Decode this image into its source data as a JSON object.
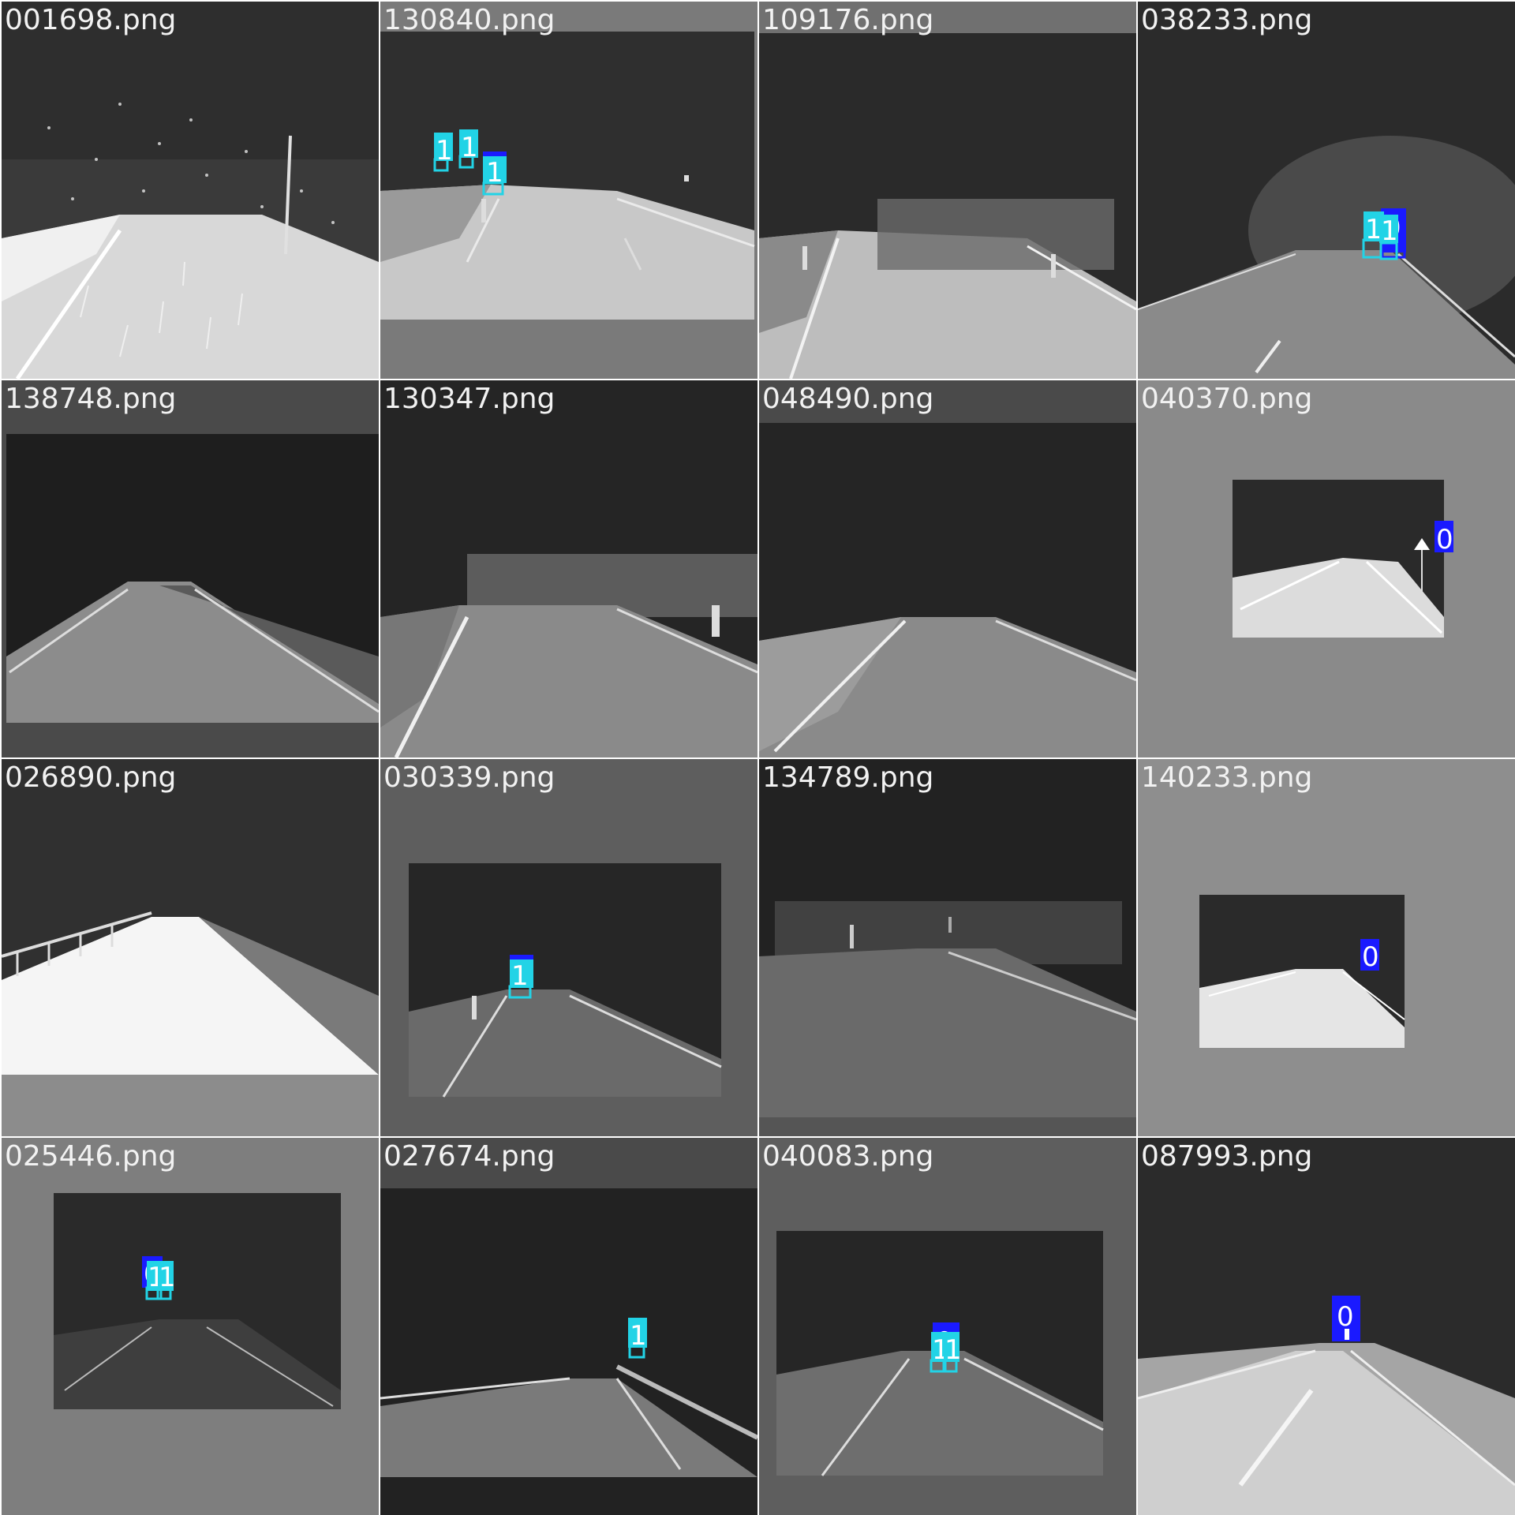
{
  "tiles": [
    {
      "filename": "001698.png",
      "detections": []
    },
    {
      "filename": "130840.png",
      "detections": [
        {
          "label": "1"
        },
        {
          "label": "1"
        },
        {
          "label": "1"
        }
      ]
    },
    {
      "filename": "109176.png",
      "detections": []
    },
    {
      "filename": "038233.png",
      "detections": [
        {
          "label": "0"
        },
        {
          "label": "1"
        },
        {
          "label": "1"
        }
      ]
    },
    {
      "filename": "138748.png",
      "detections": []
    },
    {
      "filename": "130347.png",
      "detections": []
    },
    {
      "filename": "048490.png",
      "detections": []
    },
    {
      "filename": "040370.png",
      "detections": [
        {
          "label": "0"
        }
      ]
    },
    {
      "filename": "026890.png",
      "detections": []
    },
    {
      "filename": "030339.png",
      "detections": [
        {
          "label": "1"
        }
      ]
    },
    {
      "filename": "134789.png",
      "detections": []
    },
    {
      "filename": "140233.png",
      "detections": [
        {
          "label": "0"
        }
      ]
    },
    {
      "filename": "025446.png",
      "detections": [
        {
          "label": "0"
        },
        {
          "label": "1"
        },
        {
          "label": "1"
        }
      ]
    },
    {
      "filename": "027674.png",
      "detections": [
        {
          "label": "1"
        }
      ]
    },
    {
      "filename": "040083.png",
      "detections": [
        {
          "label": "0"
        },
        {
          "label": "1"
        },
        {
          "label": "1"
        }
      ]
    },
    {
      "filename": "087993.png",
      "detections": [
        {
          "label": "0"
        }
      ]
    }
  ],
  "colors": {
    "class_0_box": "#1a1aff",
    "class_1_box": "#22d3e6",
    "padding_gray": "#7a7a7a",
    "night_sky": "#2b2b2b"
  }
}
